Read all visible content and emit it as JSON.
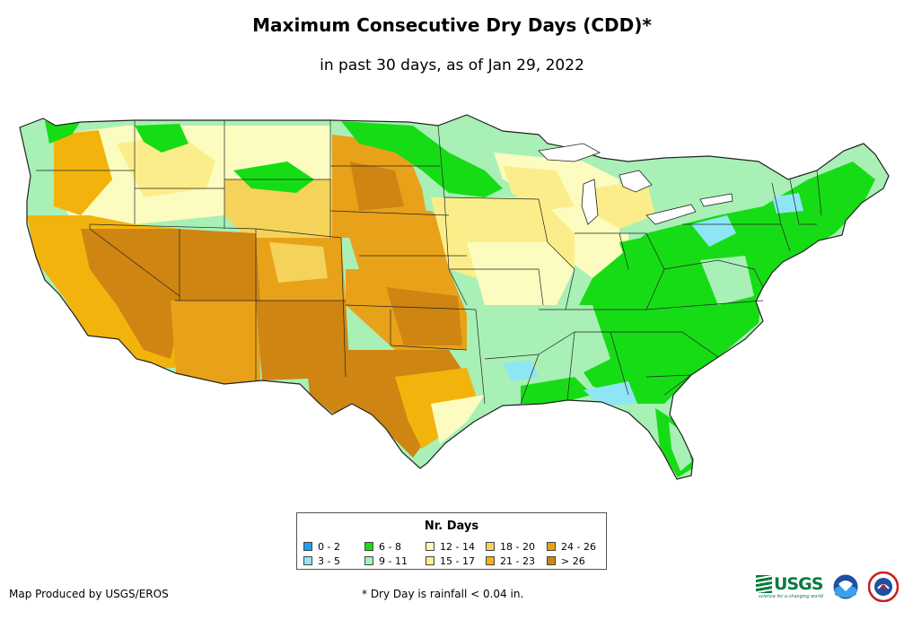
{
  "title": "Maximum Consecutive Dry Days (CDD)*",
  "subtitle": "in past 30 days, as of Jan 29, 2022",
  "legend": {
    "title": "Nr. Days",
    "items": [
      {
        "label": "0 - 2",
        "color": "#1ea0f0"
      },
      {
        "label": "3 - 5",
        "color": "#8ee6f4"
      },
      {
        "label": "6 - 8",
        "color": "#16dc16"
      },
      {
        "label": "9 - 11",
        "color": "#a8f0b6"
      },
      {
        "label": "12 - 14",
        "color": "#fcfcc0"
      },
      {
        "label": "15 - 17",
        "color": "#fbee8a"
      },
      {
        "label": "18 - 20",
        "color": "#f5d25a"
      },
      {
        "label": "21 - 23",
        "color": "#f2b40c"
      },
      {
        "label": "24 - 26",
        "color": "#e8a21a"
      },
      {
        "label": "> 26",
        "color": "#cf8512"
      }
    ]
  },
  "credit": "Map Produced by USGS/EROS",
  "footnote": "* Dry Day is rainfall < 0.04 in.",
  "logos": {
    "usgs": "USGS",
    "usgs_tagline": "science for a changing world",
    "noaa": "NOAA",
    "nws": "NATIONAL WEATHER SERVICE"
  }
}
